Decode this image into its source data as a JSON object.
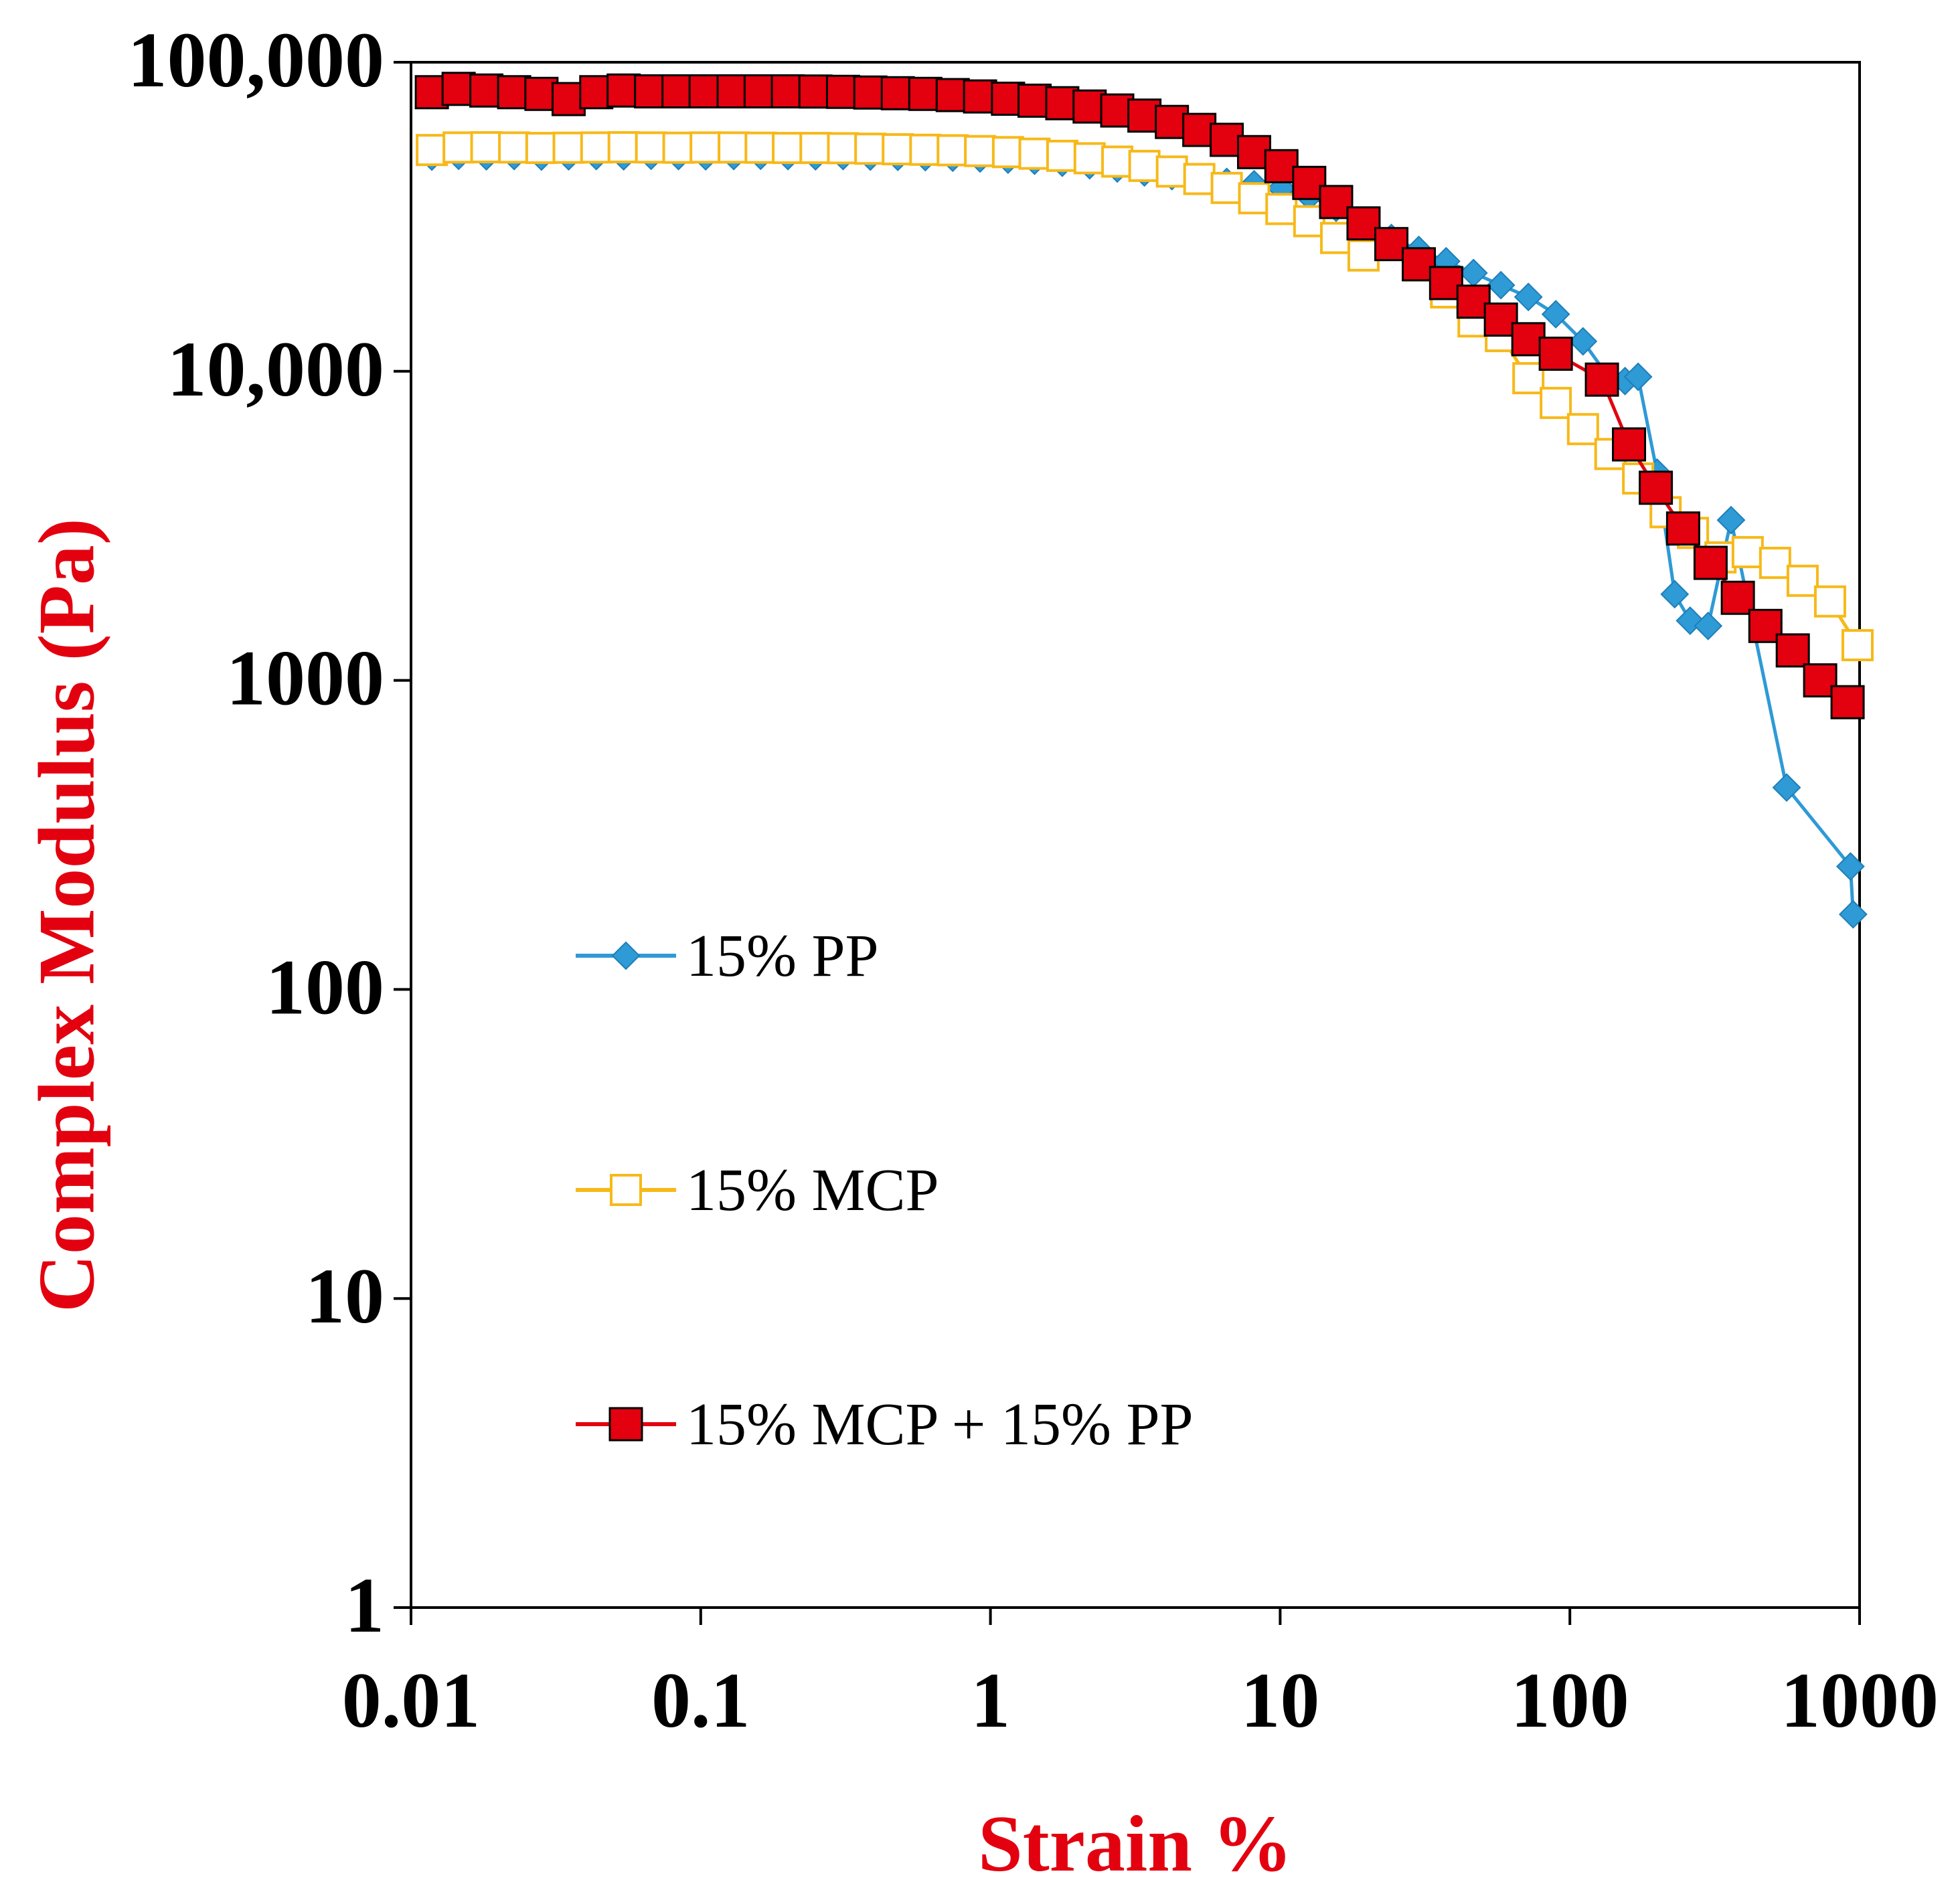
{
  "chart_data": {
    "type": "line",
    "scale": {
      "x": "log",
      "y": "log"
    },
    "xlabel": "Strain %",
    "ylabel": "Complex Modulus  (Pa)",
    "xlim": [
      0.01,
      1000
    ],
    "ylim": [
      1,
      100000
    ],
    "x_ticks": [
      {
        "value": 0.01,
        "label": "0.01"
      },
      {
        "value": 0.1,
        "label": "0.1"
      },
      {
        "value": 1,
        "label": "1"
      },
      {
        "value": 10,
        "label": "10"
      },
      {
        "value": 100,
        "label": "100"
      },
      {
        "value": 1000,
        "label": "1000"
      }
    ],
    "y_ticks": [
      {
        "value": 1,
        "label": "1"
      },
      {
        "value": 10,
        "label": "10"
      },
      {
        "value": 100,
        "label": "100"
      },
      {
        "value": 1000,
        "label": "1000"
      },
      {
        "value": 10000,
        "label": "10,000"
      },
      {
        "value": 100000,
        "label": "100,000"
      }
    ],
    "legend_position": "center-left",
    "series": [
      {
        "name": "15% PP",
        "color": "#2e9ad6",
        "marker": "diamond",
        "x": [
          0.0118,
          0.0146,
          0.0182,
          0.0227,
          0.0282,
          0.035,
          0.0436,
          0.0542,
          0.0674,
          0.0838,
          0.104,
          0.13,
          0.161,
          0.2,
          0.249,
          0.31,
          0.385,
          0.479,
          0.596,
          0.741,
          0.921,
          1.15,
          1.42,
          1.77,
          2.2,
          2.74,
          3.4,
          4.23,
          5.26,
          6.54,
          8.13,
          10.1,
          12.6,
          15.6,
          19.4,
          24.2,
          30.1,
          37.4,
          46.5,
          57.8,
          71.9,
          89.4,
          111,
          138,
          155,
          172,
          200,
          230,
          260,
          300,
          360,
          560,
          930,
          950
        ],
        "values": [
          49500,
          49800,
          49600,
          49700,
          49500,
          49600,
          49700,
          49600,
          49800,
          49700,
          49600,
          49700,
          49800,
          49700,
          49600,
          49700,
          49500,
          49400,
          49300,
          49100,
          48800,
          48400,
          48000,
          47300,
          46400,
          45300,
          44000,
          42800,
          41700,
          41000,
          40300,
          39100,
          36800,
          33800,
          30400,
          27000,
          24700,
          22700,
          20800,
          19000,
          17400,
          15300,
          12500,
          9400,
          9300,
          9600,
          4700,
          1900,
          1560,
          1500,
          3300,
          450,
          250,
          175
        ]
      },
      {
        "name": "15% MCP",
        "color": "#f7b919",
        "marker": "square-open",
        "x": [
          0.0118,
          0.0146,
          0.0182,
          0.0227,
          0.0282,
          0.035,
          0.0436,
          0.0542,
          0.0674,
          0.0838,
          0.104,
          0.13,
          0.161,
          0.2,
          0.249,
          0.31,
          0.385,
          0.479,
          0.596,
          0.741,
          0.921,
          1.15,
          1.42,
          1.77,
          2.2,
          2.74,
          3.4,
          4.23,
          5.26,
          6.54,
          8.13,
          10.1,
          12.6,
          15.6,
          19.4,
          24.2,
          30.1,
          37.4,
          46.5,
          57.8,
          71.9,
          89.4,
          111,
          138,
          172,
          214,
          266,
          331,
          411,
          511,
          636,
          791,
          984
        ],
        "values": [
          52000,
          53000,
          53100,
          53000,
          52800,
          52900,
          53000,
          53100,
          53000,
          52900,
          53000,
          53000,
          52900,
          52800,
          52800,
          52700,
          52500,
          52300,
          52100,
          51900,
          51600,
          51200,
          50600,
          49800,
          48900,
          47700,
          46200,
          44300,
          41900,
          39200,
          36300,
          33500,
          30600,
          27000,
          23700,
          25800,
          22000,
          18000,
          14500,
          13000,
          9500,
          7900,
          6500,
          5400,
          4500,
          3500,
          3000,
          2500,
          2600,
          2400,
          2100,
          1800,
          1300
        ]
      },
      {
        "name": "15% MCP + 15% PP",
        "color": "#e3000f",
        "marker": "square-filled",
        "x": [
          0.0118,
          0.0146,
          0.0182,
          0.0227,
          0.0282,
          0.035,
          0.0436,
          0.0542,
          0.0674,
          0.0838,
          0.104,
          0.13,
          0.161,
          0.2,
          0.249,
          0.31,
          0.385,
          0.479,
          0.596,
          0.741,
          0.921,
          1.15,
          1.42,
          1.77,
          2.2,
          2.74,
          3.4,
          4.23,
          5.26,
          6.54,
          8.13,
          10.1,
          12.6,
          15.6,
          19.4,
          24.2,
          30.1,
          37.4,
          46.5,
          57.8,
          71.9,
          89.4,
          129,
          160,
          198,
          246,
          306,
          380,
          473,
          588,
          731,
          909
        ],
        "values": [
          80000,
          82000,
          81000,
          80000,
          79000,
          76000,
          80000,
          81000,
          80500,
          80500,
          80500,
          80500,
          80500,
          80500,
          80400,
          80200,
          79800,
          79400,
          79000,
          78300,
          77500,
          76200,
          75100,
          73700,
          71900,
          69800,
          67200,
          64100,
          60400,
          56100,
          51200,
          46100,
          40700,
          35300,
          30100,
          25800,
          22200,
          19300,
          16800,
          14700,
          12700,
          11400,
          9400,
          5800,
          4200,
          3100,
          2400,
          1850,
          1500,
          1250,
          1000,
          850
        ]
      }
    ]
  }
}
